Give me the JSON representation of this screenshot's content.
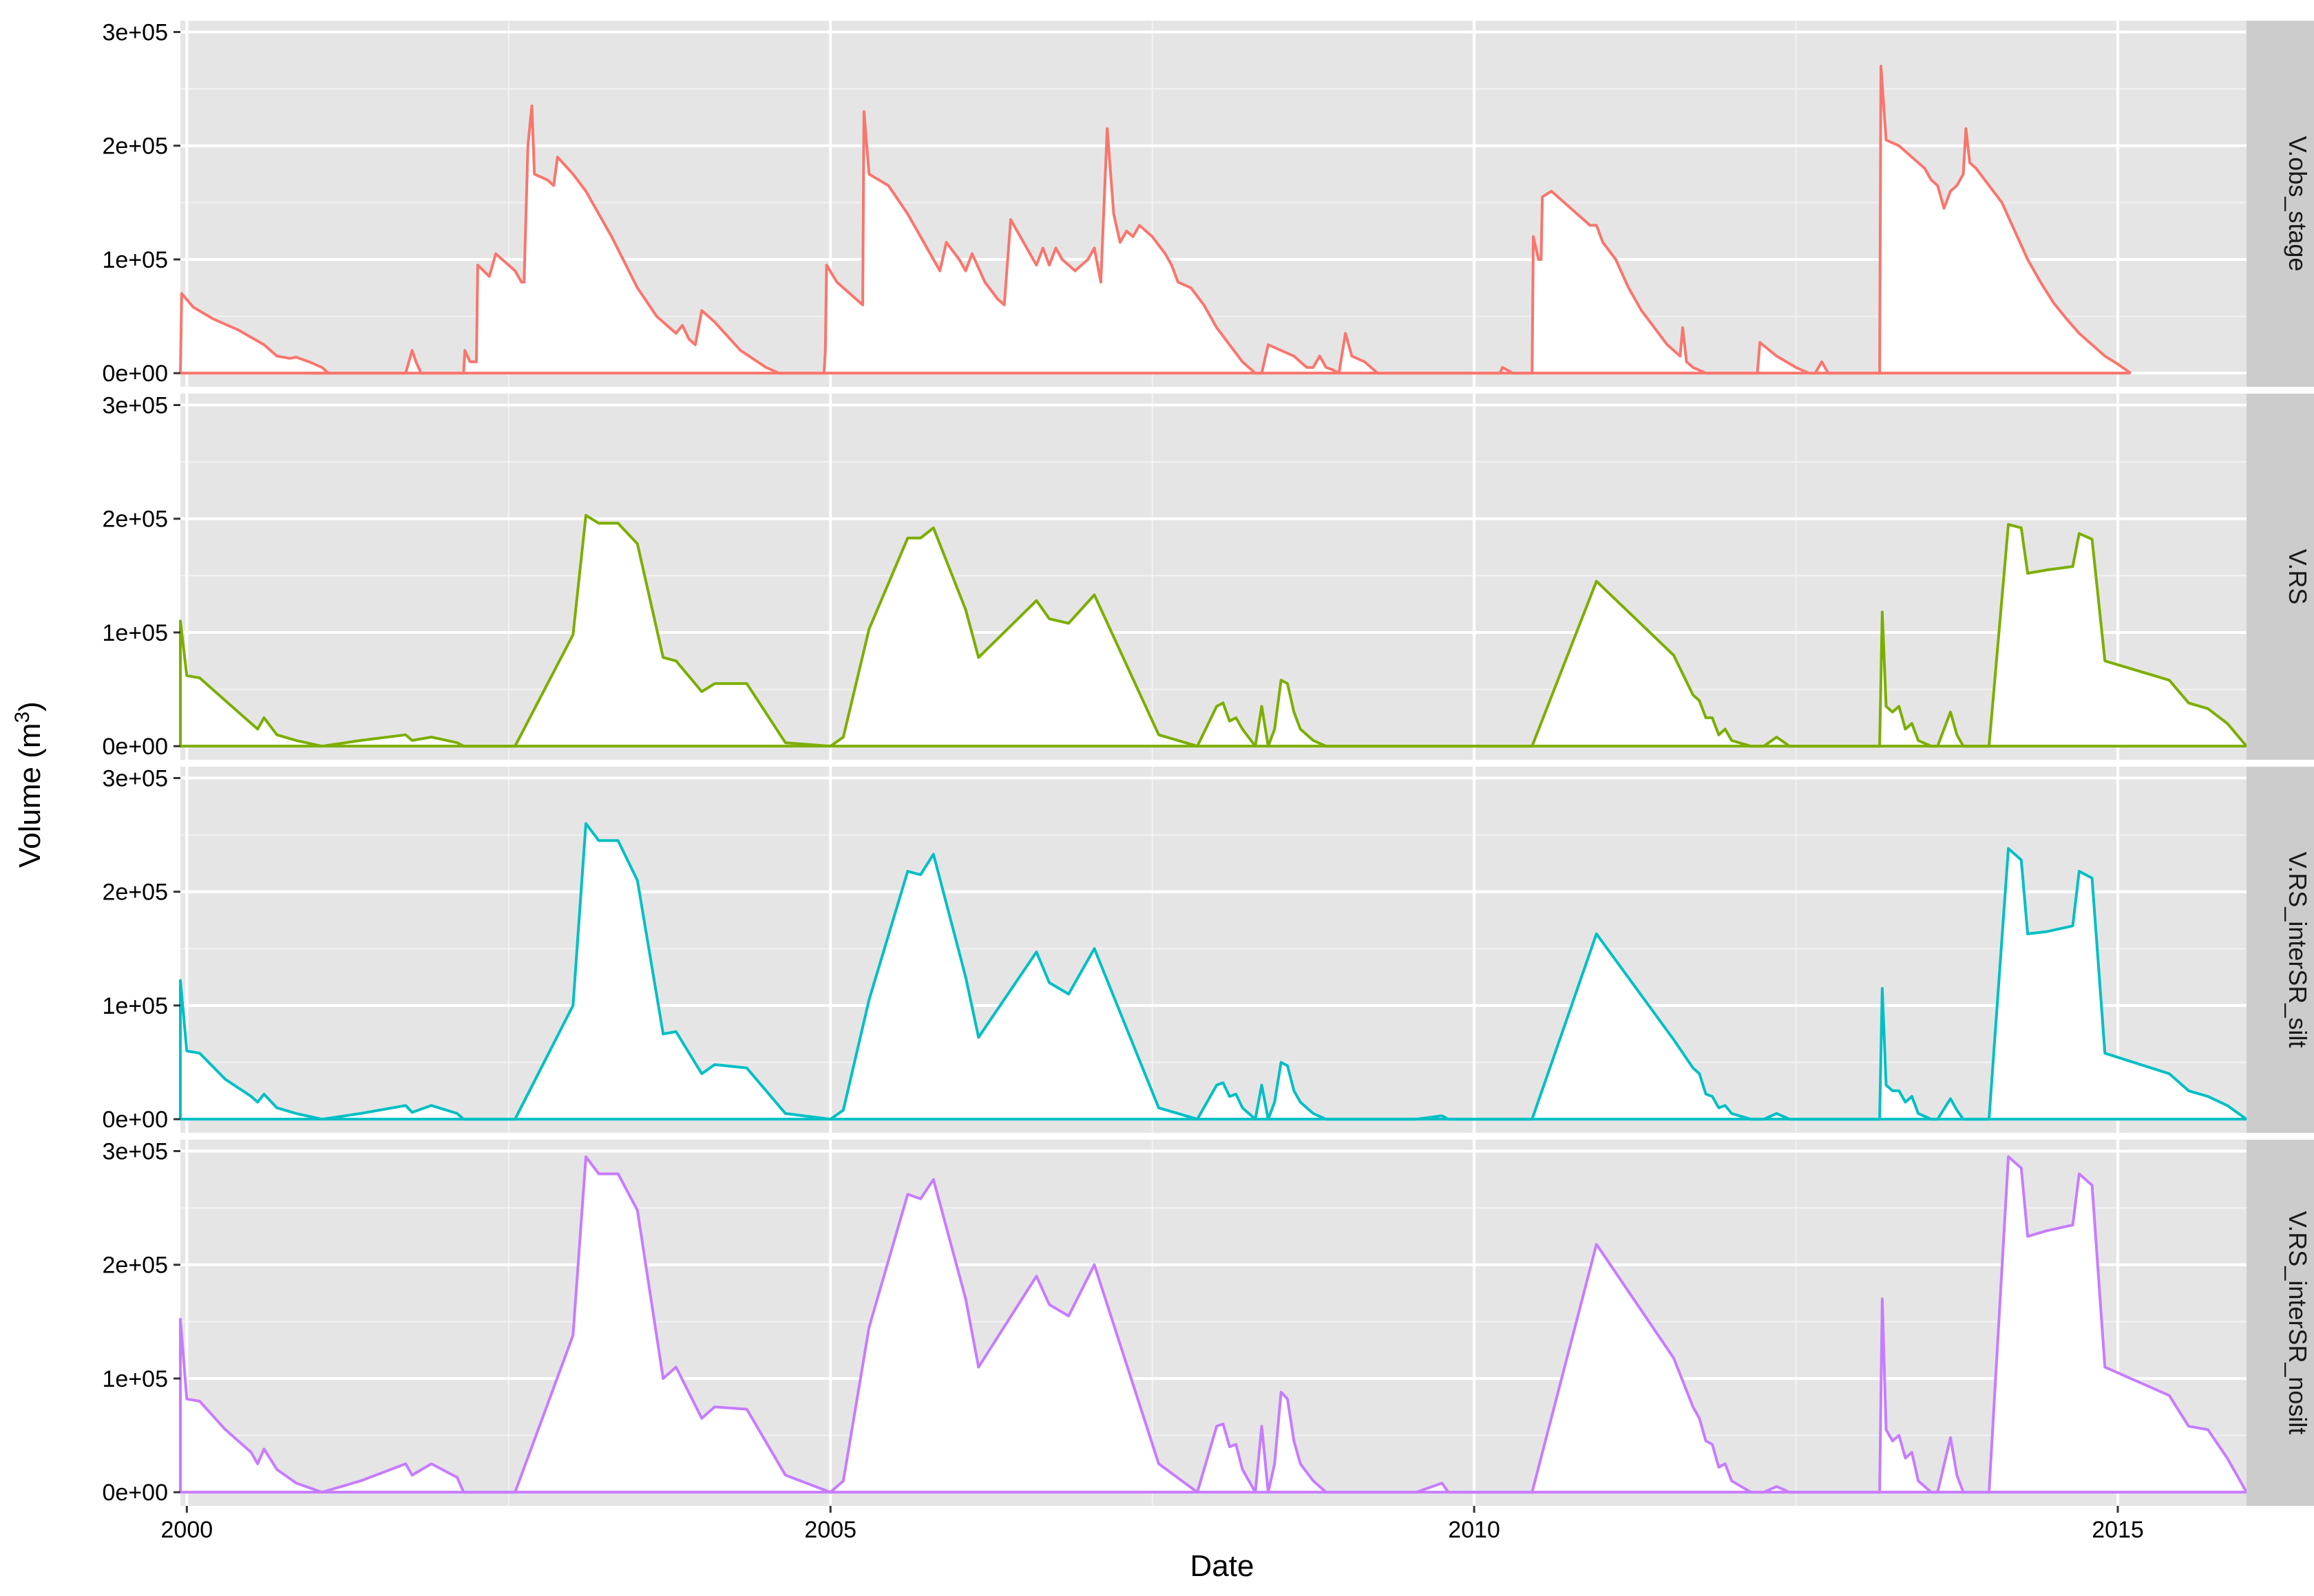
{
  "chart_data": {
    "type": "area",
    "xlabel": "Date",
    "ylabel": "Volume (m",
    "ylabel_superscript": "3",
    "ylabel_close": ")",
    "xlim": [
      1999.95,
      2016.0
    ],
    "ylim": [
      -12000,
      310000
    ],
    "x_ticks": [
      {
        "value": 2000,
        "label": "2000"
      },
      {
        "value": 2005,
        "label": "2005"
      },
      {
        "value": 2010,
        "label": "2010"
      },
      {
        "value": 2015,
        "label": "2015"
      }
    ],
    "y_ticks": [
      {
        "value": 0,
        "label": "0e+00"
      },
      {
        "value": 100000,
        "label": "1e+05"
      },
      {
        "value": 200000,
        "label": "2e+05"
      },
      {
        "value": 300000,
        "label": "3e+05"
      }
    ],
    "grid": true,
    "legend": "none",
    "panel_background": "#e5e5e5",
    "strip_background": "#cccccc",
    "fill_color": "#ffffff",
    "series": [
      {
        "name": "V.obs_stage",
        "color": "#f8766d",
        "points": [
          [
            2000.7,
            0
          ],
          [
            2000.85,
            0
          ],
          [
            2000.86,
            70000
          ],
          [
            2000.95,
            58000
          ],
          [
            2001.1,
            48000
          ],
          [
            2001.3,
            38000
          ],
          [
            2001.5,
            25000
          ],
          [
            2001.6,
            15000
          ],
          [
            2001.7,
            13000
          ],
          [
            2001.75,
            14000
          ],
          [
            2001.85,
            10000
          ],
          [
            2001.95,
            5000
          ],
          [
            2002.0,
            0
          ],
          [
            2001.98,
            0
          ],
          [
            2001.99,
            0
          ],
          [
            2001.82,
            0
          ],
          [
            2001.9,
            0
          ],
          [
            2002.6,
            0
          ],
          [
            2002.65,
            20000
          ],
          [
            2002.68,
            10000
          ],
          [
            2002.72,
            0
          ],
          [
            2003.05,
            0
          ],
          [
            2003.06,
            20000
          ],
          [
            2003.1,
            10000
          ],
          [
            2003.15,
            10000
          ],
          [
            2003.16,
            95000
          ],
          [
            2003.25,
            85000
          ],
          [
            2003.3,
            105000
          ],
          [
            2003.45,
            90000
          ],
          [
            2003.5,
            80000
          ],
          [
            2003.52,
            80000
          ],
          [
            2003.55,
            200000
          ],
          [
            2003.58,
            235000
          ],
          [
            2003.6,
            175000
          ],
          [
            2003.7,
            170000
          ],
          [
            2003.75,
            165000
          ],
          [
            2003.78,
            190000
          ],
          [
            2003.9,
            175000
          ],
          [
            2004.0,
            160000
          ],
          [
            2004.2,
            120000
          ],
          [
            2004.4,
            75000
          ],
          [
            2004.55,
            50000
          ],
          [
            2004.65,
            40000
          ],
          [
            2004.7,
            35000
          ],
          [
            2004.75,
            42000
          ],
          [
            2004.8,
            30000
          ],
          [
            2004.85,
            25000
          ],
          [
            2004.9,
            55000
          ],
          [
            2005.0,
            45000
          ],
          [
            2005.2,
            20000
          ],
          [
            2005.4,
            5000
          ],
          [
            2005.5,
            0
          ],
          [
            2005.85,
            0
          ],
          [
            2005.86,
            20000
          ],
          [
            2005.87,
            95000
          ],
          [
            2005.95,
            80000
          ],
          [
            2006.05,
            70000
          ],
          [
            2006.15,
            60000
          ],
          [
            2006.16,
            230000
          ],
          [
            2006.2,
            175000
          ],
          [
            2006.35,
            165000
          ],
          [
            2006.5,
            140000
          ],
          [
            2006.6,
            120000
          ],
          [
            2006.7,
            100000
          ],
          [
            2006.75,
            90000
          ],
          [
            2006.8,
            115000
          ],
          [
            2006.9,
            100000
          ],
          [
            2006.95,
            90000
          ],
          [
            2007.0,
            105000
          ],
          [
            2007.1,
            80000
          ],
          [
            2007.2,
            65000
          ],
          [
            2007.25,
            60000
          ],
          [
            2007.3,
            135000
          ],
          [
            2007.4,
            115000
          ],
          [
            2007.5,
            95000
          ],
          [
            2007.55,
            110000
          ],
          [
            2007.6,
            95000
          ],
          [
            2007.65,
            110000
          ],
          [
            2007.7,
            100000
          ],
          [
            2007.8,
            90000
          ],
          [
            2007.9,
            100000
          ],
          [
            2007.95,
            110000
          ],
          [
            2008.0,
            80000
          ],
          [
            2008.05,
            215000
          ],
          [
            2008.1,
            140000
          ],
          [
            2008.15,
            115000
          ],
          [
            2008.2,
            125000
          ],
          [
            2008.25,
            120000
          ],
          [
            2008.3,
            130000
          ],
          [
            2008.4,
            120000
          ],
          [
            2008.5,
            105000
          ],
          [
            2008.55,
            95000
          ],
          [
            2008.6,
            80000
          ],
          [
            2008.7,
            75000
          ],
          [
            2008.8,
            60000
          ],
          [
            2008.9,
            40000
          ],
          [
            2009.0,
            25000
          ],
          [
            2009.1,
            10000
          ],
          [
            2009.2,
            0
          ],
          [
            2009.25,
            0
          ],
          [
            2009.3,
            25000
          ],
          [
            2009.5,
            15000
          ],
          [
            2009.55,
            10000
          ],
          [
            2009.6,
            5000
          ],
          [
            2009.65,
            5000
          ],
          [
            2009.7,
            15000
          ],
          [
            2009.75,
            5000
          ],
          [
            2009.8,
            3000
          ],
          [
            2009.85,
            0
          ],
          [
            2009.9,
            35000
          ],
          [
            2009.95,
            15000
          ],
          [
            2010.05,
            10000
          ],
          [
            2010.15,
            0
          ],
          [
            2010.4,
            0
          ],
          [
            2010.45,
            0
          ],
          [
            2010.5,
            0
          ],
          [
            2010.55,
            0
          ],
          [
            2011.1,
            0
          ],
          [
            2011.12,
            5000
          ],
          [
            2011.2,
            0
          ],
          [
            2011.35,
            0
          ],
          [
            2011.36,
            120000
          ],
          [
            2011.4,
            100000
          ],
          [
            2011.42,
            100000
          ],
          [
            2011.43,
            155000
          ],
          [
            2011.5,
            160000
          ],
          [
            2011.6,
            150000
          ],
          [
            2011.7,
            140000
          ],
          [
            2011.8,
            130000
          ],
          [
            2011.85,
            130000
          ],
          [
            2011.9,
            115000
          ],
          [
            2012.0,
            100000
          ],
          [
            2012.1,
            75000
          ],
          [
            2012.2,
            55000
          ],
          [
            2012.3,
            40000
          ],
          [
            2012.4,
            25000
          ],
          [
            2012.5,
            15000
          ],
          [
            2012.52,
            40000
          ],
          [
            2012.55,
            10000
          ],
          [
            2012.6,
            5000
          ],
          [
            2012.7,
            0
          ],
          [
            2012.9,
            0
          ],
          [
            2013.0,
            0
          ],
          [
            2013.05,
            0
          ],
          [
            2013.1,
            0
          ],
          [
            2013.12,
            27000
          ],
          [
            2013.25,
            15000
          ],
          [
            2013.4,
            5000
          ],
          [
            2013.5,
            0
          ],
          [
            2013.55,
            0
          ],
          [
            2013.6,
            10000
          ],
          [
            2013.65,
            0
          ],
          [
            2013.8,
            0
          ],
          [
            2014.05,
            0
          ],
          [
            2014.06,
            270000
          ],
          [
            2014.1,
            205000
          ],
          [
            2014.2,
            200000
          ],
          [
            2014.3,
            190000
          ],
          [
            2014.4,
            180000
          ],
          [
            2014.45,
            170000
          ],
          [
            2014.5,
            165000
          ],
          [
            2014.55,
            145000
          ],
          [
            2014.6,
            160000
          ],
          [
            2014.65,
            165000
          ],
          [
            2014.7,
            175000
          ],
          [
            2014.72,
            215000
          ],
          [
            2014.75,
            185000
          ],
          [
            2014.8,
            180000
          ],
          [
            2014.9,
            165000
          ],
          [
            2015.0,
            150000
          ],
          [
            2015.1,
            125000
          ],
          [
            2015.2,
            100000
          ],
          [
            2015.3,
            80000
          ],
          [
            2015.4,
            62000
          ],
          [
            2015.5,
            48000
          ],
          [
            2015.6,
            35000
          ],
          [
            2015.7,
            25000
          ],
          [
            2015.8,
            15000
          ],
          [
            2015.9,
            8000
          ],
          [
            2016.0,
            0
          ]
        ]
      }
    ]
  },
  "strips": [
    "V.obs_stage",
    "V.RS",
    "V.RS_interSR_silt",
    "V.RS_interSR_nosilt"
  ]
}
